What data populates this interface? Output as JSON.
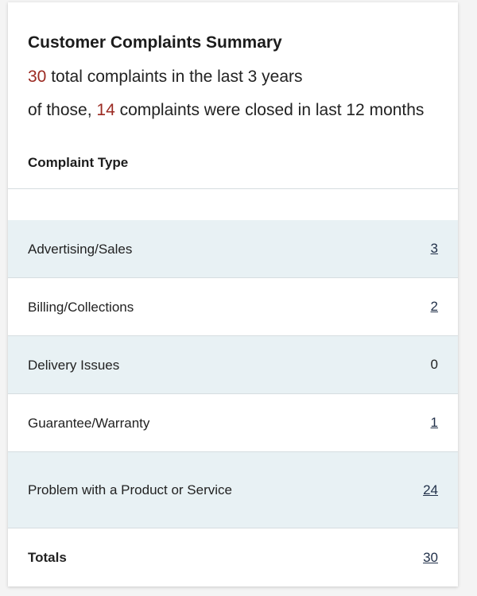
{
  "summary": {
    "title": "Customer Complaints Summary",
    "total_count": "30",
    "total_text": " total complaints in the last 3 years",
    "closed_prefix": "of those, ",
    "closed_count": "14",
    "closed_text": " complaints were closed in last 12 months"
  },
  "table": {
    "column_header": "Complaint Type",
    "rows": [
      {
        "label": "Advertising/Sales",
        "count": "3"
      },
      {
        "label": "Billing/Collections",
        "count": "2"
      },
      {
        "label": "Delivery Issues",
        "count": "0"
      },
      {
        "label": "Guarantee/Warranty",
        "count": "1"
      },
      {
        "label": "Problem with a Product or Service",
        "count": "24"
      }
    ],
    "totals": {
      "label": "Totals",
      "count": "30"
    }
  },
  "colors": {
    "accent_number": "#9b2a22",
    "shaded_row": "#e8f1f4",
    "link": "#22314a"
  }
}
